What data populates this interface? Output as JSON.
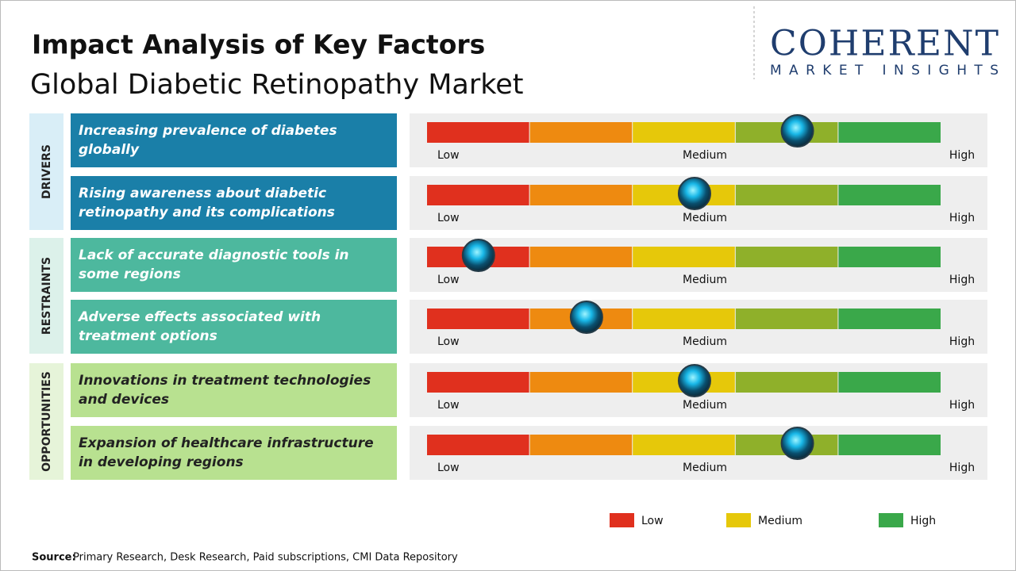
{
  "header": {
    "title": "Impact Analysis of Key Factors",
    "subtitle": "Global Diabetic Retinopathy Market"
  },
  "logo": {
    "name": "COHERENT",
    "tagline": "MARKET INSIGHTS"
  },
  "scale": [
    "Low",
    "Medium",
    "High"
  ],
  "groups": [
    {
      "label": "DRIVERS",
      "factors": [
        {
          "text": "Increasing prevalence of diabetes globally",
          "impact": 0.72
        },
        {
          "text": "Rising awareness about diabetic retinopathy and its complications",
          "impact": 0.52
        }
      ]
    },
    {
      "label": "RESTRAINTS",
      "factors": [
        {
          "text": "Lack of accurate diagnostic tools in some regions",
          "impact": 0.1
        },
        {
          "text": "Adverse effects associated with treatment options",
          "impact": 0.31
        }
      ]
    },
    {
      "label": "OPPORTUNITIES",
      "factors": [
        {
          "text": "Innovations in treatment technologies and devices",
          "impact": 0.52
        },
        {
          "text": "Expansion of healthcare infrastructure in developing regions",
          "impact": 0.72
        }
      ]
    }
  ],
  "legend": [
    "Low",
    "Medium",
    "High"
  ],
  "source": {
    "label": "Source:",
    "text": "Primary Research, Desk Research, Paid subscriptions, CMI Data Repository"
  }
}
